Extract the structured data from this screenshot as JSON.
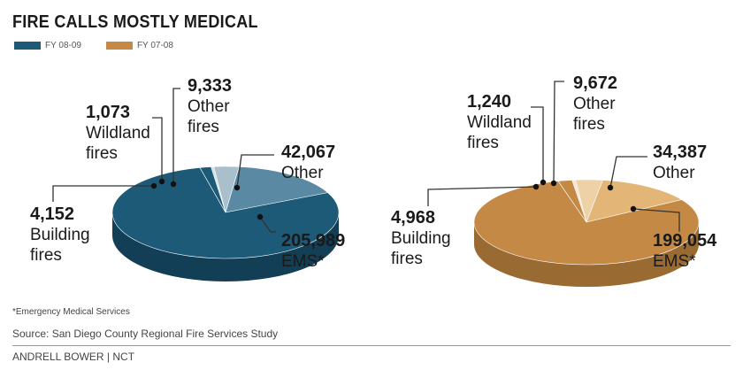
{
  "title": "FIRE CALLS MOSTLY MEDICAL",
  "legend": [
    {
      "label": "FY 08-09",
      "color": "#1d5a78"
    },
    {
      "label": "FY 07-08",
      "color": "#c48a45"
    }
  ],
  "footnote": "*Emergency Medical Services",
  "source": "Source: San Diego County Regional Fire Services Study",
  "credit": "ANDRELL BOWER | NCT",
  "chart_data": [
    {
      "type": "pie",
      "series_name": "FY 08-09",
      "slices": [
        {
          "name_lines": [
            "Wildland",
            "fires"
          ],
          "value": 1073,
          "value_label": "1,073",
          "color": "#d7dde0"
        },
        {
          "name_lines": [
            "Other",
            "fires"
          ],
          "value": 9333,
          "value_label": "9,333",
          "color": "#a9bfcb"
        },
        {
          "name_lines": [
            "Other"
          ],
          "value": 42067,
          "value_label": "42,067",
          "color": "#5a8aa3"
        },
        {
          "name_lines": [
            "EMS*"
          ],
          "value": 205989,
          "value_label": "205,989",
          "color": "#1d5a78"
        },
        {
          "name_lines": [
            "Building",
            "fires"
          ],
          "value": 4152,
          "value_label": "4,152",
          "color": "#1d5a78"
        }
      ],
      "side_color": "#123f56"
    },
    {
      "type": "pie",
      "series_name": "FY 07-08",
      "slices": [
        {
          "name_lines": [
            "Wildland",
            "fires"
          ],
          "value": 1240,
          "value_label": "1,240",
          "color": "#f3e6d2"
        },
        {
          "name_lines": [
            "Other",
            "fires"
          ],
          "value": 9672,
          "value_label": "9,672",
          "color": "#eed1a6"
        },
        {
          "name_lines": [
            "Other"
          ],
          "value": 34387,
          "value_label": "34,387",
          "color": "#e3b677"
        },
        {
          "name_lines": [
            "EMS*"
          ],
          "value": 199054,
          "value_label": "199,054",
          "color": "#c48a45"
        },
        {
          "name_lines": [
            "Building",
            "fires"
          ],
          "value": 4968,
          "value_label": "4,968",
          "color": "#c48a45"
        }
      ],
      "side_color": "#9a6a33"
    }
  ]
}
